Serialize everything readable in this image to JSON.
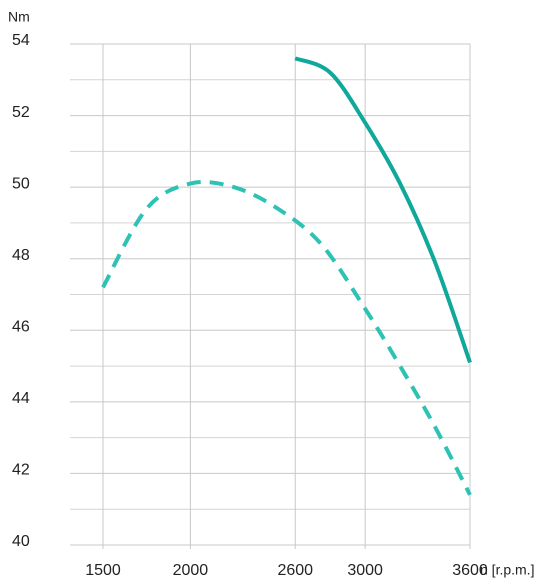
{
  "chart_data": {
    "type": "line",
    "y_label": "Nm",
    "x_label": "n [r.p.m.]",
    "xlim": [
      1500,
      3600
    ],
    "xticks": [
      1500,
      2000,
      2600,
      3000,
      3600
    ],
    "ylim": [
      40,
      54
    ],
    "yticks": [
      40,
      42,
      44,
      46,
      48,
      50,
      52,
      54
    ],
    "yminorticks": [
      41,
      43,
      45,
      47,
      49,
      51,
      53
    ],
    "grid": true,
    "series": [
      {
        "color": "#0fa89b",
        "style": "solid",
        "x": [
          2600,
          2800,
          3000,
          3200,
          3400,
          3600
        ],
        "values": [
          53.6,
          53.2,
          51.8,
          50.1,
          47.9,
          45.1
        ]
      },
      {
        "color": "#2ec2b4",
        "style": "dashed",
        "x": [
          1500,
          1750,
          2000,
          2250,
          2500,
          2750,
          3000,
          3200,
          3400,
          3600
        ],
        "values": [
          47.2,
          49.4,
          50.1,
          50.0,
          49.4,
          48.4,
          46.6,
          45.0,
          43.3,
          41.4
        ]
      }
    ]
  }
}
